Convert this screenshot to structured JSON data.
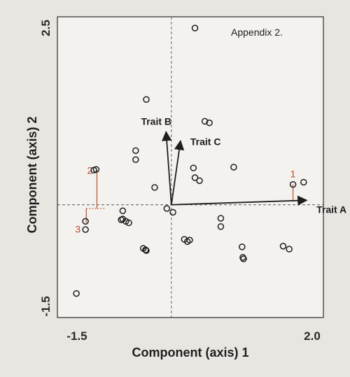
{
  "chart_data": {
    "type": "scatter",
    "note": "Appendix 2.",
    "xlabel": "Component (axis) 1",
    "ylabel": "Component (axis) 2",
    "xlim": [
      -1.5,
      2.0
    ],
    "ylim": [
      -1.5,
      2.5
    ],
    "x_tick_labels": [
      "-1.5",
      "2.0"
    ],
    "y_tick_labels": [
      "2.5",
      "-1.5"
    ],
    "grid": false,
    "legend": "none",
    "points": [
      {
        "x": 0.31,
        "y": 2.35
      },
      {
        "x": -0.33,
        "y": 1.4
      },
      {
        "x": 0.44,
        "y": 1.11
      },
      {
        "x": 0.5,
        "y": 1.09
      },
      {
        "x": -0.47,
        "y": 0.72
      },
      {
        "x": -0.47,
        "y": 0.6
      },
      {
        "x": -0.99,
        "y": 0.47
      },
      {
        "x": -1.02,
        "y": 0.46
      },
      {
        "x": 0.29,
        "y": 0.49
      },
      {
        "x": 0.82,
        "y": 0.5
      },
      {
        "x": 0.31,
        "y": 0.36
      },
      {
        "x": 0.37,
        "y": 0.32
      },
      {
        "x": -0.22,
        "y": 0.23
      },
      {
        "x": 1.6,
        "y": 0.27
      },
      {
        "x": 1.74,
        "y": 0.3
      },
      {
        "x": -0.06,
        "y": -0.05
      },
      {
        "x": 0.02,
        "y": -0.1
      },
      {
        "x": -0.64,
        "y": -0.08
      },
      {
        "x": -0.64,
        "y": -0.19
      },
      {
        "x": -0.66,
        "y": -0.2
      },
      {
        "x": -0.6,
        "y": -0.22
      },
      {
        "x": -0.56,
        "y": -0.24
      },
      {
        "x": -1.13,
        "y": -0.22
      },
      {
        "x": -1.13,
        "y": -0.33
      },
      {
        "x": 0.65,
        "y": -0.18
      },
      {
        "x": 0.65,
        "y": -0.29
      },
      {
        "x": 0.17,
        "y": -0.46
      },
      {
        "x": 0.21,
        "y": -0.49
      },
      {
        "x": 0.24,
        "y": -0.47
      },
      {
        "x": -0.37,
        "y": -0.58
      },
      {
        "x": -0.34,
        "y": -0.6
      },
      {
        "x": -0.33,
        "y": -0.61
      },
      {
        "x": 0.93,
        "y": -0.56
      },
      {
        "x": 0.94,
        "y": -0.7
      },
      {
        "x": 0.95,
        "y": -0.72
      },
      {
        "x": 1.47,
        "y": -0.55
      },
      {
        "x": 1.55,
        "y": -0.59
      },
      {
        "x": -1.25,
        "y": -1.18
      }
    ],
    "vectors": [
      {
        "name": "Trait A",
        "x": 1.78,
        "y": 0.06
      },
      {
        "name": "Trait B",
        "x": -0.07,
        "y": 0.97
      },
      {
        "name": "Trait C",
        "x": 0.12,
        "y": 0.85
      }
    ],
    "annotations": [
      {
        "label": "1",
        "x": 1.6,
        "y_from": 0.27,
        "y_to": 0.06
      },
      {
        "label": "2",
        "x": -0.98,
        "y_from": 0.46,
        "y_to": -0.05
      },
      {
        "label": "3",
        "x": -1.12,
        "y_from": -0.05,
        "y_to": -0.24
      }
    ]
  },
  "colors": {
    "ink": "#1e1e1e",
    "annotation": "#b5502a",
    "page": "#e9e6e2",
    "plot_bg": "#f4f2ef"
  }
}
